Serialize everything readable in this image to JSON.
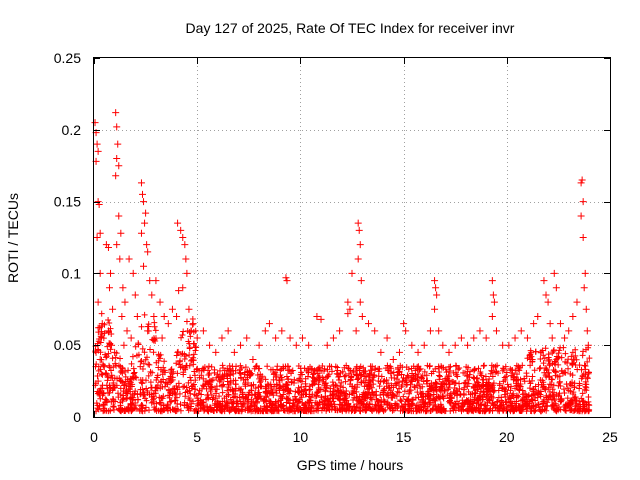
{
  "chart_data": {
    "type": "scatter",
    "title": "Day 127 of 2025, Rate Of TEC Index for receiver invr",
    "xlabel": "GPS time / hours",
    "ylabel": "ROTI / TECUs",
    "xlim": [
      0,
      25
    ],
    "ylim": [
      0,
      0.25
    ],
    "x_ticks": [
      0,
      5,
      10,
      15,
      20,
      25
    ],
    "x_tick_labels": [
      "0",
      "5",
      "10",
      "15",
      "20",
      "25"
    ],
    "y_ticks": [
      0,
      0.05,
      0.1,
      0.15,
      0.2,
      0.25
    ],
    "y_tick_labels": [
      "0",
      "0.05",
      "0.1",
      "0.15",
      "0.2",
      "0.25"
    ],
    "grid": true,
    "marker": "+",
    "color": "#ff0000",
    "series": [
      {
        "name": "ROTI",
        "note": "dense scatter, representative sampled points",
        "points": [
          [
            0.05,
            0.205
          ],
          [
            0.1,
            0.198
          ],
          [
            0.15,
            0.19
          ],
          [
            0.2,
            0.185
          ],
          [
            0.1,
            0.178
          ],
          [
            0.2,
            0.15
          ],
          [
            0.25,
            0.148
          ],
          [
            0.3,
            0.128
          ],
          [
            0.15,
            0.125
          ],
          [
            0.3,
            0.1
          ],
          [
            0.2,
            0.08
          ],
          [
            0.4,
            0.065
          ],
          [
            0.1,
            0.045
          ],
          [
            0.3,
            0.04
          ],
          [
            0.5,
            0.035
          ],
          [
            0.2,
            0.025
          ],
          [
            0.4,
            0.02
          ],
          [
            0.6,
            0.03
          ],
          [
            0.6,
            0.12
          ],
          [
            0.7,
            0.118
          ],
          [
            0.8,
            0.1
          ],
          [
            0.75,
            0.09
          ],
          [
            0.9,
            0.075
          ],
          [
            0.7,
            0.06
          ],
          [
            0.85,
            0.05
          ],
          [
            1.0,
            0.045
          ],
          [
            1.05,
            0.212
          ],
          [
            1.1,
            0.202
          ],
          [
            1.15,
            0.19
          ],
          [
            1.1,
            0.18
          ],
          [
            1.2,
            0.175
          ],
          [
            1.05,
            0.168
          ],
          [
            1.2,
            0.14
          ],
          [
            1.3,
            0.128
          ],
          [
            1.1,
            0.12
          ],
          [
            1.25,
            0.11
          ],
          [
            1.4,
            0.09
          ],
          [
            1.5,
            0.08
          ],
          [
            1.35,
            0.07
          ],
          [
            1.6,
            0.06
          ],
          [
            1.45,
            0.05
          ],
          [
            1.7,
            0.11
          ],
          [
            1.9,
            0.1
          ],
          [
            2.0,
            0.085
          ],
          [
            2.1,
            0.07
          ],
          [
            1.8,
            0.055
          ],
          [
            2.3,
            0.163
          ],
          [
            2.35,
            0.155
          ],
          [
            2.4,
            0.15
          ],
          [
            2.5,
            0.142
          ],
          [
            2.45,
            0.135
          ],
          [
            2.3,
            0.128
          ],
          [
            2.55,
            0.12
          ],
          [
            2.6,
            0.115
          ],
          [
            2.4,
            0.105
          ],
          [
            2.7,
            0.095
          ],
          [
            2.8,
            0.085
          ],
          [
            2.9,
            0.07
          ],
          [
            2.6,
            0.06
          ],
          [
            3.0,
            0.095
          ],
          [
            3.2,
            0.08
          ],
          [
            3.4,
            0.07
          ],
          [
            3.6,
            0.065
          ],
          [
            3.3,
            0.055
          ],
          [
            3.8,
            0.075
          ],
          [
            4.0,
            0.07
          ],
          [
            4.1,
            0.088
          ],
          [
            4.05,
            0.135
          ],
          [
            4.3,
            0.125
          ],
          [
            4.4,
            0.12
          ],
          [
            4.45,
            0.11
          ],
          [
            4.5,
            0.1
          ],
          [
            4.3,
            0.09
          ],
          [
            4.6,
            0.075
          ],
          [
            4.8,
            0.065
          ],
          [
            4.2,
            0.13
          ],
          [
            4.7,
            0.06
          ],
          [
            5.0,
            0.055
          ],
          [
            5.3,
            0.06
          ],
          [
            5.6,
            0.05
          ],
          [
            5.9,
            0.045
          ],
          [
            6.2,
            0.055
          ],
          [
            6.5,
            0.06
          ],
          [
            6.8,
            0.045
          ],
          [
            7.1,
            0.05
          ],
          [
            7.4,
            0.055
          ],
          [
            7.7,
            0.04
          ],
          [
            8.0,
            0.05
          ],
          [
            8.3,
            0.06
          ],
          [
            8.5,
            0.065
          ],
          [
            8.8,
            0.055
          ],
          [
            9.1,
            0.06
          ],
          [
            9.3,
            0.097
          ],
          [
            9.35,
            0.095
          ],
          [
            9.5,
            0.055
          ],
          [
            9.8,
            0.05
          ],
          [
            10.1,
            0.055
          ],
          [
            10.4,
            0.05
          ],
          [
            10.8,
            0.07
          ],
          [
            11.0,
            0.068
          ],
          [
            11.3,
            0.05
          ],
          [
            11.6,
            0.055
          ],
          [
            11.9,
            0.06
          ],
          [
            12.3,
            0.08
          ],
          [
            12.4,
            0.075
          ],
          [
            12.5,
            0.1
          ],
          [
            12.3,
            0.072
          ],
          [
            12.7,
            0.06
          ],
          [
            12.8,
            0.135
          ],
          [
            12.85,
            0.13
          ],
          [
            12.9,
            0.12
          ],
          [
            12.8,
            0.11
          ],
          [
            12.95,
            0.095
          ],
          [
            12.9,
            0.08
          ],
          [
            13.0,
            0.07
          ],
          [
            13.3,
            0.065
          ],
          [
            13.6,
            0.06
          ],
          [
            13.9,
            0.045
          ],
          [
            14.2,
            0.055
          ],
          [
            14.5,
            0.04
          ],
          [
            14.8,
            0.045
          ],
          [
            15.0,
            0.065
          ],
          [
            15.1,
            0.06
          ],
          [
            15.4,
            0.05
          ],
          [
            15.7,
            0.045
          ],
          [
            16.0,
            0.05
          ],
          [
            16.3,
            0.06
          ],
          [
            16.5,
            0.095
          ],
          [
            16.55,
            0.09
          ],
          [
            16.6,
            0.085
          ],
          [
            16.5,
            0.075
          ],
          [
            16.7,
            0.06
          ],
          [
            16.9,
            0.05
          ],
          [
            17.2,
            0.045
          ],
          [
            17.5,
            0.05
          ],
          [
            17.8,
            0.055
          ],
          [
            18.1,
            0.05
          ],
          [
            18.4,
            0.055
          ],
          [
            18.7,
            0.06
          ],
          [
            19.0,
            0.055
          ],
          [
            19.3,
            0.095
          ],
          [
            19.35,
            0.085
          ],
          [
            19.4,
            0.08
          ],
          [
            19.3,
            0.07
          ],
          [
            19.5,
            0.06
          ],
          [
            19.8,
            0.05
          ],
          [
            20.1,
            0.05
          ],
          [
            20.4,
            0.055
          ],
          [
            20.7,
            0.06
          ],
          [
            21.0,
            0.055
          ],
          [
            21.3,
            0.065
          ],
          [
            21.5,
            0.07
          ],
          [
            21.8,
            0.095
          ],
          [
            21.9,
            0.085
          ],
          [
            22.0,
            0.08
          ],
          [
            22.1,
            0.065
          ],
          [
            22.2,
            0.055
          ],
          [
            22.3,
            0.1
          ],
          [
            22.4,
            0.09
          ],
          [
            22.6,
            0.065
          ],
          [
            22.8,
            0.055
          ],
          [
            23.0,
            0.06
          ],
          [
            23.2,
            0.07
          ],
          [
            23.4,
            0.08
          ],
          [
            23.6,
            0.163
          ],
          [
            23.65,
            0.165
          ],
          [
            23.7,
            0.15
          ],
          [
            23.6,
            0.14
          ],
          [
            23.7,
            0.125
          ],
          [
            23.8,
            0.1
          ],
          [
            23.75,
            0.09
          ],
          [
            23.85,
            0.075
          ],
          [
            23.9,
            0.06
          ],
          [
            23.95,
            0.05
          ]
        ]
      }
    ]
  }
}
